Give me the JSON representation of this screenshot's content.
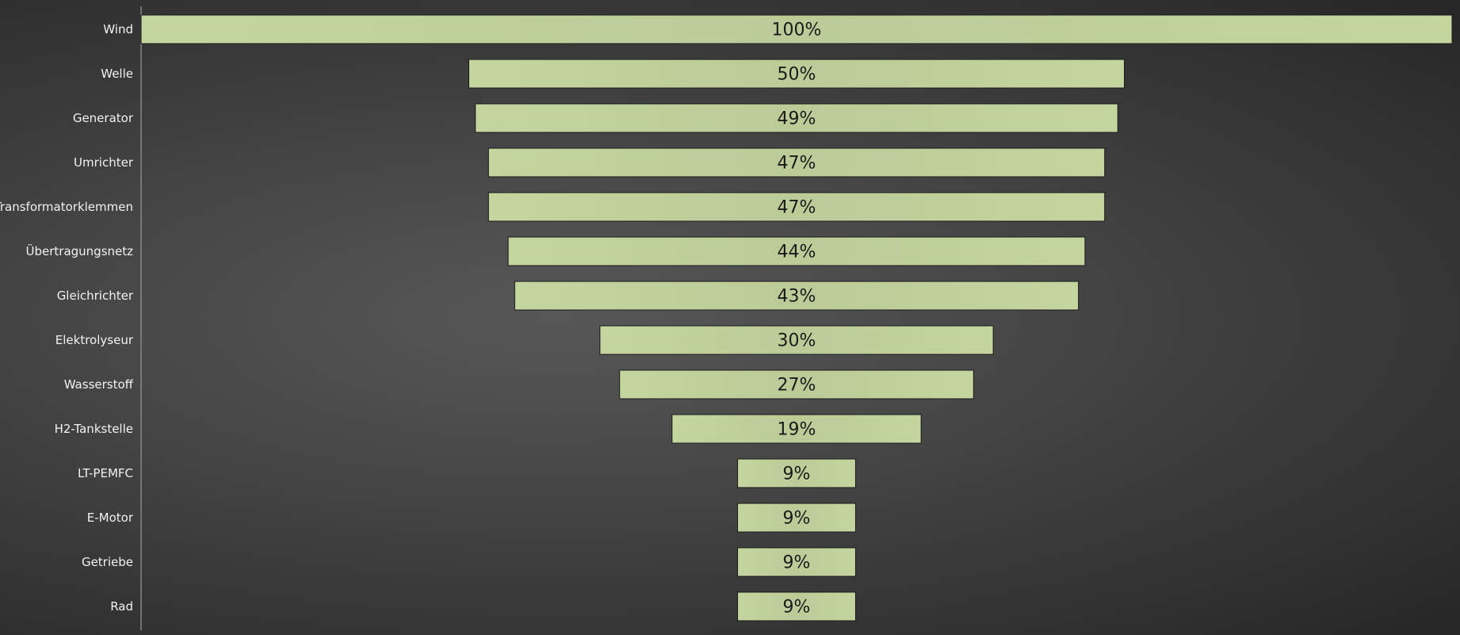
{
  "chart_data": {
    "type": "bar",
    "subtype": "funnel",
    "orientation": "horizontal",
    "categories": [
      "Wind",
      "Welle",
      "Generator",
      "Umrichter",
      "Transformatorklemmen",
      "Übertragungsnetz",
      "Gleichrichter",
      "Elektrolyseur",
      "Wasserstoff",
      "H2-Tankstelle",
      "LT-PEMFC",
      "E-Motor",
      "Getriebe",
      "Rad"
    ],
    "values": [
      100,
      50,
      49,
      47,
      47,
      44,
      43,
      30,
      27,
      19,
      9,
      9,
      9,
      9
    ],
    "value_labels": [
      "100%",
      "50%",
      "49%",
      "47%",
      "47%",
      "44%",
      "43%",
      "30%",
      "27%",
      "19%",
      "9%",
      "9%",
      "9%",
      "9%"
    ],
    "unit": "%",
    "xlim": [
      0,
      100
    ],
    "grid": false,
    "legend": "none"
  },
  "colors": {
    "bar_fill": "#bccb98",
    "bar_fill_top": "#c4d59e",
    "bar_stroke": "#1a1a1a",
    "axis_line": "#9a9a9a",
    "label_text": "#f2f2f2",
    "bar_text": "#1a1a1a"
  }
}
